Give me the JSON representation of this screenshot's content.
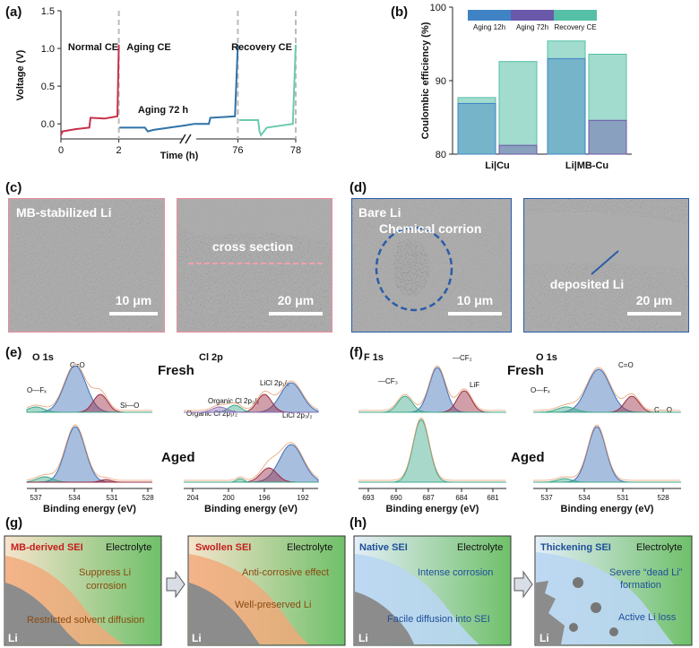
{
  "figure_labels": [
    "(a)",
    "(b)",
    "(c)",
    "(d)",
    "(e)",
    "(f)",
    "(g)",
    "(h)"
  ],
  "chart_data": [
    {
      "type": "line",
      "xlabel": "Time (h)",
      "ylabel": "Voltage (V)",
      "xlim": [
        0,
        78
      ],
      "xbreak": [
        4.3,
        74.5
      ],
      "xticks": [
        0,
        2,
        76,
        78
      ],
      "ylim": [
        -0.2,
        1.5
      ],
      "yticks": [
        {
          "value": 0,
          "label": "0.0"
        },
        {
          "value": 0.5,
          "label": "0.5"
        },
        {
          "value": 1,
          "label": "1.0"
        },
        {
          "value": 1.5,
          "label": "1.5"
        }
      ],
      "annotations": [
        "Aging 72 h"
      ],
      "series": [
        {
          "name": "Normal CE",
          "color": "#c8304a",
          "x": [
            0,
            0.05,
            0.5,
            0.98,
            1.02,
            1.5,
            1.95,
            2.0
          ],
          "values": [
            -0.15,
            -0.1,
            -0.07,
            -0.05,
            0.08,
            0.07,
            0.1,
            1.05
          ]
        },
        {
          "name": "Aging CE",
          "color": "#2f72a8",
          "x": [
            2.02,
            2.9,
            3.0,
            3.2,
            4.3,
            74.5,
            75.0,
            75.05,
            75.9,
            76.0
          ],
          "values": [
            -0.05,
            -0.05,
            -0.1,
            -0.08,
            -0.02,
            0.0,
            0.0,
            0.08,
            0.1,
            1.05
          ]
        },
        {
          "name": "Recovery CE",
          "color": "#6ccbb0",
          "x": [
            76.05,
            76.7,
            76.75,
            76.8,
            77.0,
            77.9,
            78.0
          ],
          "values": [
            0.05,
            0.05,
            -0.1,
            -0.15,
            -0.05,
            0.0,
            1.05
          ]
        }
      ]
    },
    {
      "type": "bar",
      "ylabel": "Coulombic efficiency (%)",
      "categories": [
        "Li|Cu",
        "Li|MB-Cu"
      ],
      "ylim": [
        80,
        100
      ],
      "yticks": [
        80,
        90,
        100
      ],
      "series": [
        {
          "name": "Aging 12h",
          "color": "#3f83c4",
          "values": [
            86.9,
            93.0
          ]
        },
        {
          "name": "Aging 72h",
          "color": "#6a58aa",
          "values": [
            81.2,
            84.6
          ]
        }
      ],
      "recovery": {
        "name": "Recovery CE",
        "color": "#55c0a6",
        "after_aging_12h": [
          87.7,
          95.4
        ],
        "after_aging_72h": [
          92.6,
          93.6
        ]
      }
    }
  ],
  "panel_c": {
    "images": [
      {
        "label": "MB-stabilized Li",
        "scale": "10 μm"
      },
      {
        "label": "cross section",
        "scale": "20 μm"
      }
    ]
  },
  "panel_d": {
    "images": [
      {
        "label": "Bare Li",
        "note": "Chemical corrion",
        "scale": "10 μm"
      },
      {
        "label": "deposited Li",
        "scale": "20 μm"
      }
    ]
  },
  "states": [
    "Fresh",
    "Aged"
  ],
  "panel_e": {
    "spectra": [
      {
        "title": "O 1s",
        "peaks": [
          "C=O",
          "Si—O",
          "O—Fₓ"
        ],
        "xticks": [
          "537",
          "534",
          "531",
          "528"
        ],
        "xlabel": "Binding energy (eV)"
      },
      {
        "title": "Cl 2p",
        "peaks": [
          "Organic Cl 2p₁/₂",
          "Organic Cl 2p₃/₂",
          "LiCl 2p₁/₂",
          "LiCl 2p₃/₂"
        ],
        "xticks": [
          "204",
          "200",
          "196",
          "192"
        ],
        "xlabel": "Binding energy (eV)"
      }
    ]
  },
  "panel_f": {
    "spectra": [
      {
        "title": "F 1s",
        "peaks": [
          "—CF₂",
          "—CF₃",
          "LiF"
        ],
        "xticks": [
          "693",
          "690",
          "687",
          "684",
          "681"
        ],
        "xlabel": "Binding energy (eV)"
      },
      {
        "title": "O 1s",
        "peaks": [
          "C=O",
          "O—Fₓ",
          "C—O"
        ],
        "xticks": [
          "537",
          "534",
          "531",
          "528"
        ],
        "xlabel": "Binding energy (eV)"
      }
    ]
  },
  "panel_g": {
    "boxes": [
      {
        "texts": [
          "MB-derived SEI",
          "Electrolyte",
          "Suppress Li",
          "corrosion",
          "Restricted solvent diffusion",
          "Li"
        ]
      },
      {
        "texts": [
          "Swollen SEI",
          "Electrolyte",
          "Anti-corrosive effect",
          "Well-preserved Li",
          "Li"
        ]
      }
    ]
  },
  "panel_h": {
    "boxes": [
      {
        "texts": [
          "Native SEI",
          "Electrolyte",
          "Intense corrosion",
          "Facile diffusion into SEI",
          "Li"
        ]
      },
      {
        "texts": [
          "Thickening SEI",
          "Electrolyte",
          "Severe “dead Li”",
          "formation",
          "Active Li loss",
          "Li"
        ]
      }
    ]
  }
}
